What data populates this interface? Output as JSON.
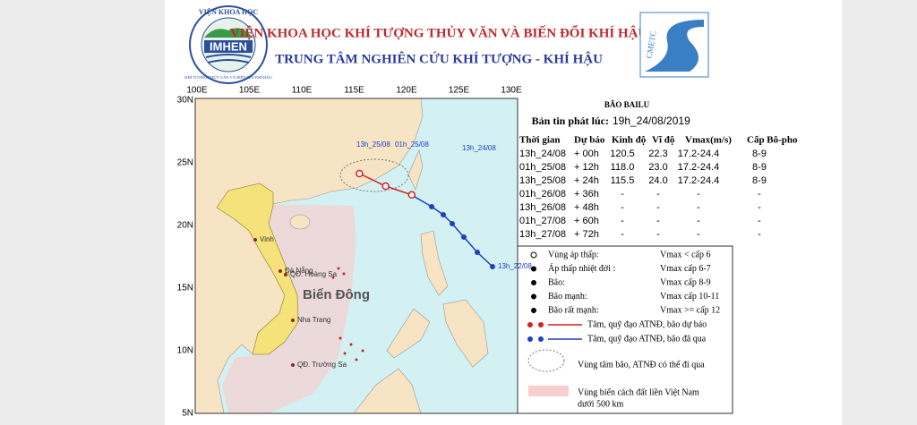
{
  "header": {
    "institute": "VIỆN KHOA HỌC KHÍ TƯỢNG THỦY VĂN VÀ BIẾN ĐỔI KHÍ HẬU",
    "center": "TRUNG TÂM NGHIÊN CỨU KHÍ TƯỢNG - KHÍ HẬU",
    "logo_top": "VIỆN KHOA HỌC",
    "logo_name": "IMHEN",
    "logo_bottom": "KHÍ TƯỢNG THỦY VĂN VÀ BIẾN ĐỔI KHÍ HẬU",
    "logo_right": "CMETC"
  },
  "map": {
    "lon_labels": [
      "100E",
      "105E",
      "110E",
      "115E",
      "120E",
      "125E",
      "130E"
    ],
    "lat_labels": [
      "30N",
      "25N",
      "20N",
      "15N",
      "10N",
      "5N"
    ],
    "places": [
      "Vinh",
      "Đà Nẵng",
      "QĐ. Hoàng Sa",
      "Biển Đông",
      "Nha Trang",
      "QĐ. Trường Sa"
    ],
    "track_labels": [
      "13h_25/08",
      "01h_25/08",
      "13h_24/08",
      "13h_22/08"
    ]
  },
  "bulletin": {
    "storm": "BÃO BAILU",
    "issued_label": "Bản tin phát lúc:",
    "issued_time": "19h_24/08/2019",
    "table": {
      "header": [
        "Thời gian",
        "Dự báo",
        "Kinh độ",
        "Vĩ độ",
        "Vmax(m/s)",
        "Cấp Bô-pho"
      ],
      "rows": [
        [
          "13h_24/08",
          "+ 00h",
          "120.5",
          "22.3",
          "17.2-24.4",
          "8-9"
        ],
        [
          "01h_25/08",
          "+ 12h",
          "118.0",
          "23.0",
          "17.2-24.4",
          "8-9"
        ],
        [
          "13h_25/08",
          "+ 24h",
          "115.5",
          "24.0",
          "17.2-24.4",
          "8-9"
        ],
        [
          "01h_26/08",
          "+ 36h",
          "-",
          "-",
          "-",
          "-"
        ],
        [
          "13h_26/08",
          "+ 48h",
          "-",
          "-",
          "-",
          "-"
        ],
        [
          "01h_27/08",
          "+ 60h",
          "-",
          "-",
          "-",
          "-"
        ],
        [
          "13h_27/08",
          "+ 72h",
          "-",
          "-",
          "-",
          "-"
        ]
      ]
    }
  },
  "legend": {
    "intensity": [
      [
        "Vùng áp thấp:",
        "Vmax < cấp 6"
      ],
      [
        "Áp thấp nhiệt đới :",
        "Vmax cấp 6-7"
      ],
      [
        "Bão:",
        "Vmax cấp 8-9"
      ],
      [
        "Bão mạnh:",
        "Vmax cấp 10-11"
      ],
      [
        "Bão rất mạnh:",
        "Vmax >= cấp 12"
      ]
    ],
    "forecast_track": "Tâm, quỹ đạo ATNĐ, bão dự báo",
    "past_track": "Tâm, quỹ đạo ATNĐ, bão đã qua",
    "cone": "Vùng tâm bão, ATNĐ có thể đi qua",
    "zone_line1": "Vùng biển cách đất liền Việt Nam",
    "zone_line2": "dưới 500 km"
  }
}
